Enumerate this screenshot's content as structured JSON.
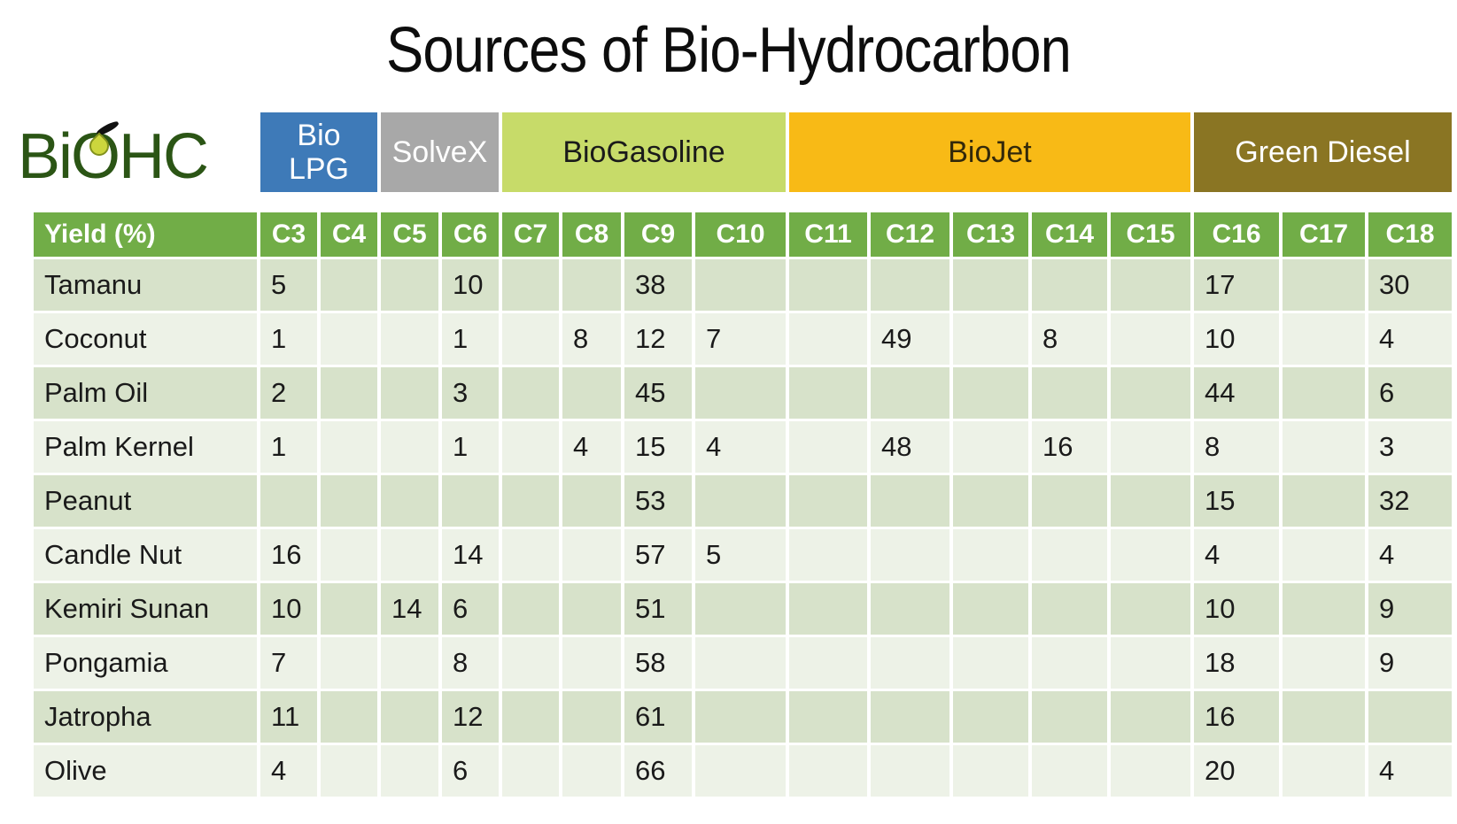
{
  "logo": {
    "text_before_o": "Bi",
    "o_letter": "O",
    "text_after_o": "HC",
    "color": "#2b5515",
    "drop_fill": "#ccd63d",
    "drop_edge": "#82911d",
    "stem_color": "#111111"
  },
  "chart_data": {
    "type": "table",
    "title": "Sources of Bio-Hydrocarbon",
    "header_bg": "#71ad47",
    "row_bg_dark": "#d7e2ca",
    "row_bg_light": "#edf2e7",
    "columns": [
      "Yield (%)",
      "C3",
      "C4",
      "C5",
      "C6",
      "C7",
      "C8",
      "C9",
      "C10",
      "C11",
      "C12",
      "C13",
      "C14",
      "C15",
      "C16",
      "C17",
      "C18"
    ],
    "column_groups": [
      {
        "label": "Bio LPG",
        "color": "#3e7ab8",
        "text_color": "#ffffff",
        "columns": [
          "C3",
          "C4"
        ]
      },
      {
        "label": "SolveX",
        "color": "#a8a8a8",
        "text_color": "#ffffff",
        "columns": [
          "C5",
          "C6"
        ]
      },
      {
        "label": "BioGasoline",
        "color": "#c7db69",
        "text_color": "#1a1a1a",
        "columns": [
          "C7",
          "C8",
          "C9",
          "C10"
        ]
      },
      {
        "label": "BioJet",
        "color": "#f8ba16",
        "text_color": "#33290a",
        "columns": [
          "C11",
          "C12",
          "C13",
          "C14",
          "C15"
        ]
      },
      {
        "label": "Green Diesel",
        "color": "#8a7523",
        "text_color": "#ffffff",
        "columns": [
          "C16",
          "C17",
          "C18"
        ]
      }
    ],
    "rows": [
      {
        "name": "Tamanu",
        "cells": [
          5,
          null,
          null,
          10,
          null,
          null,
          38,
          null,
          null,
          null,
          null,
          null,
          null,
          17,
          null,
          30
        ]
      },
      {
        "name": "Coconut",
        "cells": [
          1,
          null,
          null,
          1,
          null,
          8,
          12,
          7,
          null,
          49,
          null,
          8,
          null,
          10,
          null,
          4
        ]
      },
      {
        "name": "Palm Oil",
        "cells": [
          2,
          null,
          null,
          3,
          null,
          null,
          45,
          null,
          null,
          null,
          null,
          null,
          null,
          44,
          null,
          6
        ]
      },
      {
        "name": "Palm Kernel",
        "cells": [
          1,
          null,
          null,
          1,
          null,
          4,
          15,
          4,
          null,
          48,
          null,
          16,
          null,
          8,
          null,
          3
        ]
      },
      {
        "name": "Peanut",
        "cells": [
          null,
          null,
          null,
          null,
          null,
          null,
          53,
          null,
          null,
          null,
          null,
          null,
          null,
          15,
          null,
          32
        ]
      },
      {
        "name": "Candle Nut",
        "cells": [
          16,
          null,
          null,
          14,
          null,
          null,
          57,
          5,
          null,
          null,
          null,
          null,
          null,
          4,
          null,
          4
        ]
      },
      {
        "name": "Kemiri Sunan",
        "cells": [
          10,
          null,
          14,
          6,
          null,
          null,
          51,
          null,
          null,
          null,
          null,
          null,
          null,
          10,
          null,
          9
        ]
      },
      {
        "name": "Pongamia",
        "cells": [
          7,
          null,
          null,
          8,
          null,
          null,
          58,
          null,
          null,
          null,
          null,
          null,
          null,
          18,
          null,
          9
        ]
      },
      {
        "name": "Jatropha",
        "cells": [
          11,
          null,
          null,
          12,
          null,
          null,
          61,
          null,
          null,
          null,
          null,
          null,
          null,
          16,
          null,
          null
        ]
      },
      {
        "name": "Olive",
        "cells": [
          4,
          null,
          null,
          6,
          null,
          null,
          66,
          null,
          null,
          null,
          null,
          null,
          null,
          20,
          null,
          4
        ]
      }
    ]
  }
}
